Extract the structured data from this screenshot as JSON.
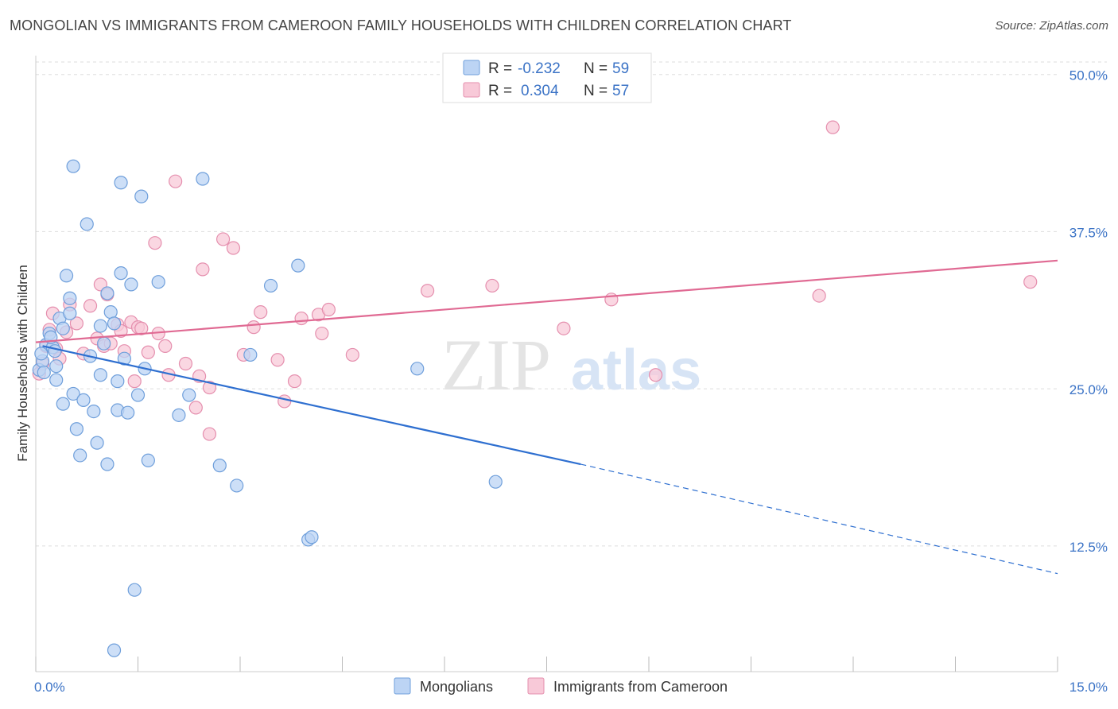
{
  "title": "MONGOLIAN VS IMMIGRANTS FROM CAMEROON FAMILY HOUSEHOLDS WITH CHILDREN CORRELATION CHART",
  "source": "Source: ZipAtlas.com",
  "watermark": {
    "zip": "ZIP",
    "atlas": "atlas"
  },
  "colors": {
    "blue_fill": "#bcd4f4",
    "blue_stroke": "#6f9fdb",
    "blue_line": "#2e6fd0",
    "pink_fill": "#f8c9d8",
    "pink_stroke": "#e58fae",
    "pink_line": "#e06a93",
    "tick_label": "#3b73c6",
    "grid": "#dddddd"
  },
  "chart_data": {
    "type": "scatter",
    "title": "MONGOLIAN VS IMMIGRANTS FROM CAMEROON FAMILY HOUSEHOLDS WITH CHILDREN CORRELATION CHART",
    "xlabel": "",
    "ylabel": "Family Households with Children",
    "xlim": [
      0,
      15
    ],
    "ylim": [
      2.5,
      51.5
    ],
    "x_tick_labels": [
      {
        "value": 0,
        "label": "0.0%"
      },
      {
        "value": 15,
        "label": "15.0%"
      }
    ],
    "y_tick_labels": [
      {
        "value": 12.5,
        "label": "12.5%"
      },
      {
        "value": 25,
        "label": "25.0%"
      },
      {
        "value": 37.5,
        "label": "37.5%"
      },
      {
        "value": 50,
        "label": "50.0%"
      }
    ],
    "grid": true,
    "legend_position": "top-center",
    "stats": [
      {
        "r_label": "R = ",
        "r_value": "-0.232",
        "n_label": "N = ",
        "n_value": "59"
      },
      {
        "r_label": "R = ",
        "r_value": "0.304",
        "n_label": "N = ",
        "n_value": "57"
      }
    ],
    "series": [
      {
        "name": "Mongolians",
        "trend": {
          "x0": 0.1,
          "y0": 28.4,
          "x1": 8.0,
          "y1": 19.0,
          "dashed_to_x": 15.0,
          "dashed_to_y": 10.3
        },
        "points": [
          [
            0.05,
            26.5
          ],
          [
            0.1,
            27.2
          ],
          [
            0.15,
            28.5
          ],
          [
            0.2,
            29.4
          ],
          [
            0.25,
            28.3
          ],
          [
            0.3,
            26.8
          ],
          [
            0.3,
            25.7
          ],
          [
            0.35,
            30.6
          ],
          [
            0.4,
            29.8
          ],
          [
            0.4,
            23.8
          ],
          [
            0.45,
            34.0
          ],
          [
            0.5,
            32.2
          ],
          [
            0.5,
            31.0
          ],
          [
            0.55,
            24.6
          ],
          [
            0.6,
            21.8
          ],
          [
            0.65,
            19.7
          ],
          [
            0.7,
            24.1
          ],
          [
            0.75,
            38.1
          ],
          [
            0.8,
            27.6
          ],
          [
            0.85,
            23.2
          ],
          [
            0.9,
            20.7
          ],
          [
            0.95,
            26.1
          ],
          [
            0.55,
            42.7
          ],
          [
            0.95,
            30.0
          ],
          [
            1.0,
            28.6
          ],
          [
            1.05,
            32.6
          ],
          [
            1.05,
            19.0
          ],
          [
            1.1,
            31.1
          ],
          [
            1.15,
            30.2
          ],
          [
            1.2,
            25.6
          ],
          [
            1.2,
            23.3
          ],
          [
            1.25,
            41.4
          ],
          [
            1.25,
            34.2
          ],
          [
            1.3,
            27.4
          ],
          [
            1.35,
            23.1
          ],
          [
            1.4,
            33.3
          ],
          [
            1.45,
            9.0
          ],
          [
            1.5,
            24.5
          ],
          [
            1.55,
            40.3
          ],
          [
            1.6,
            26.6
          ],
          [
            1.65,
            19.3
          ],
          [
            1.8,
            33.5
          ],
          [
            2.1,
            22.9
          ],
          [
            2.25,
            24.5
          ],
          [
            2.45,
            41.7
          ],
          [
            2.7,
            18.9
          ],
          [
            2.95,
            17.3
          ],
          [
            3.15,
            27.7
          ],
          [
            3.45,
            33.2
          ],
          [
            3.85,
            34.8
          ],
          [
            4.0,
            13.0
          ],
          [
            4.05,
            13.2
          ],
          [
            5.6,
            26.6
          ],
          [
            6.75,
            17.6
          ],
          [
            1.15,
            4.2
          ],
          [
            0.08,
            27.8
          ],
          [
            0.12,
            26.3
          ],
          [
            0.22,
            29.1
          ],
          [
            0.28,
            28.0
          ]
        ]
      },
      {
        "name": "Immigrants from Cameroon",
        "trend": {
          "x0": 0.0,
          "y0": 28.7,
          "x1": 15.0,
          "y1": 35.2
        },
        "points": [
          [
            0.05,
            26.2
          ],
          [
            0.1,
            27.0
          ],
          [
            0.15,
            28.4
          ],
          [
            0.2,
            29.7
          ],
          [
            0.25,
            31.0
          ],
          [
            0.3,
            28.2
          ],
          [
            0.35,
            27.4
          ],
          [
            0.45,
            29.5
          ],
          [
            0.5,
            31.7
          ],
          [
            0.6,
            30.2
          ],
          [
            0.7,
            27.8
          ],
          [
            0.8,
            31.6
          ],
          [
            0.9,
            29.0
          ],
          [
            0.95,
            33.3
          ],
          [
            1.0,
            28.4
          ],
          [
            1.05,
            32.5
          ],
          [
            1.1,
            28.6
          ],
          [
            1.2,
            30.1
          ],
          [
            1.25,
            29.6
          ],
          [
            1.3,
            28.0
          ],
          [
            1.4,
            30.3
          ],
          [
            1.45,
            25.6
          ],
          [
            1.5,
            29.9
          ],
          [
            1.55,
            29.8
          ],
          [
            1.65,
            27.9
          ],
          [
            1.75,
            36.6
          ],
          [
            1.8,
            29.4
          ],
          [
            1.9,
            28.4
          ],
          [
            1.95,
            26.1
          ],
          [
            2.05,
            41.5
          ],
          [
            2.2,
            27.0
          ],
          [
            2.35,
            23.5
          ],
          [
            2.4,
            26.0
          ],
          [
            2.45,
            34.5
          ],
          [
            2.55,
            25.1
          ],
          [
            2.55,
            21.4
          ],
          [
            2.75,
            36.9
          ],
          [
            2.9,
            36.2
          ],
          [
            3.05,
            27.7
          ],
          [
            3.2,
            29.9
          ],
          [
            3.3,
            31.1
          ],
          [
            3.55,
            27.3
          ],
          [
            3.65,
            24.0
          ],
          [
            3.8,
            25.6
          ],
          [
            3.9,
            30.6
          ],
          [
            4.15,
            30.9
          ],
          [
            4.2,
            29.4
          ],
          [
            4.3,
            31.3
          ],
          [
            4.65,
            27.7
          ],
          [
            5.75,
            32.8
          ],
          [
            6.7,
            33.2
          ],
          [
            7.75,
            29.8
          ],
          [
            8.45,
            32.1
          ],
          [
            9.1,
            26.1
          ],
          [
            11.5,
            32.4
          ],
          [
            11.7,
            45.8
          ],
          [
            14.6,
            33.5
          ]
        ]
      }
    ]
  }
}
